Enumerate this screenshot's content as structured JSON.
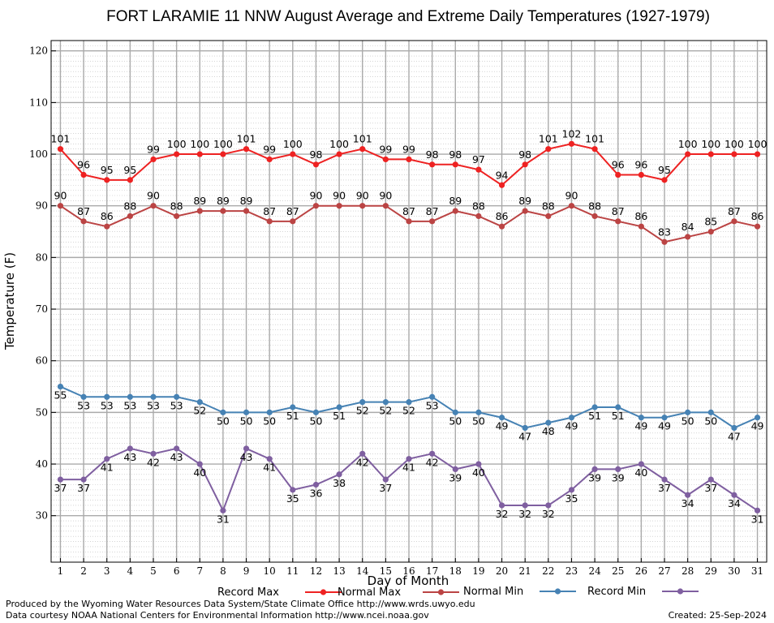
{
  "chart_data": {
    "type": "line",
    "title": "FORT LARAMIE 11 NNW August Average and Extreme Daily Temperatures (1927-1979)",
    "xlabel": "Day of Month",
    "ylabel": "Temperature (F)",
    "xlim": [
      0.6,
      31.4
    ],
    "ylim": [
      21,
      122
    ],
    "yticks": [
      30,
      40,
      50,
      60,
      70,
      80,
      90,
      100,
      110,
      120
    ],
    "x": [
      1,
      2,
      3,
      4,
      5,
      6,
      7,
      8,
      9,
      10,
      11,
      12,
      13,
      14,
      15,
      16,
      17,
      18,
      19,
      20,
      21,
      22,
      23,
      24,
      25,
      26,
      27,
      28,
      29,
      30,
      31
    ],
    "grid": true,
    "legend_position": "bottom",
    "series": [
      {
        "name": "Record Max",
        "color": "#ee2222",
        "values": [
          101,
          96,
          95,
          95,
          99,
          100,
          100,
          100,
          101,
          99,
          100,
          98,
          100,
          101,
          99,
          99,
          98,
          98,
          97,
          94,
          98,
          101,
          102,
          101,
          96,
          96,
          95,
          100,
          100,
          100,
          100
        ]
      },
      {
        "name": "Normal Max",
        "color": "#bb4444",
        "values": [
          90,
          87,
          86,
          88,
          90,
          88,
          89,
          89,
          89,
          87,
          87,
          90,
          90,
          90,
          90,
          87,
          87,
          89,
          88,
          86,
          89,
          88,
          90,
          88,
          87,
          86,
          83,
          84,
          85,
          87,
          86
        ]
      },
      {
        "name": "Normal Min",
        "color": "#4682b4",
        "values": [
          55,
          53,
          53,
          53,
          53,
          53,
          52,
          50,
          50,
          50,
          51,
          50,
          51,
          52,
          52,
          52,
          53,
          50,
          50,
          49,
          47,
          48,
          49,
          51,
          51,
          49,
          49,
          50,
          50,
          47,
          49
        ]
      },
      {
        "name": "Record Min",
        "color": "#7f5fa0",
        "values": [
          37,
          37,
          41,
          43,
          42,
          43,
          40,
          31,
          43,
          41,
          35,
          36,
          38,
          42,
          37,
          41,
          42,
          39,
          40,
          32,
          32,
          32,
          35,
          39,
          39,
          40,
          37,
          34,
          37,
          34,
          31
        ]
      }
    ]
  },
  "footer": {
    "line1": "Produced by the Wyoming Water Resources Data System/State Climate Office http://www.wrds.uwyo.edu",
    "line2": "Data courtesy NOAA National Centers for Environmental Information http://www.ncei.noaa.gov",
    "created": "Created:  25-Sep-2024"
  }
}
